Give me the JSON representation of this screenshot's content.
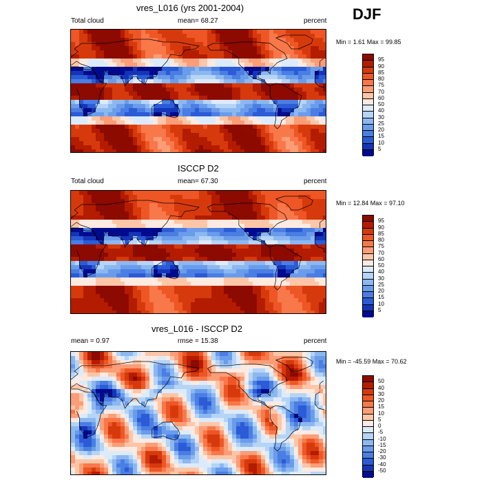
{
  "season_label": "DJF",
  "units_label": "percent",
  "panels": [
    {
      "title": "vres_L016 (yrs 2001-2004)",
      "left_label": "Total cloud",
      "mean_text": "mean=  68.27",
      "min_max": "Min =   1.61 Max =  99.85",
      "colorbar_labels": [
        "95",
        "90",
        "85",
        "80",
        "75",
        "70",
        "60",
        "50",
        "40",
        "30",
        "25",
        "20",
        "15",
        "10",
        "5"
      ],
      "palette": [
        "#8c0a00",
        "#b41c00",
        "#d63a0c",
        "#ee5626",
        "#f8784a",
        "#fb9d77",
        "#fdc6a8",
        "#fdeae0",
        "#dcebfb",
        "#b5d4f6",
        "#8cb8f0",
        "#6a9ceb",
        "#4b7ee3",
        "#2b5bd6",
        "#1535b8",
        "#000a8c"
      ],
      "map_style": "model"
    },
    {
      "title": "ISCCP D2",
      "left_label": "Total cloud",
      "mean_text": "mean=  67.30",
      "min_max": "Min =  12.84 Max =  97.10",
      "colorbar_labels": [
        "95",
        "90",
        "85",
        "80",
        "75",
        "70",
        "60",
        "50",
        "40",
        "30",
        "25",
        "20",
        "15",
        "10",
        "5"
      ],
      "palette": [
        "#8c0a00",
        "#b41c00",
        "#d63a0c",
        "#ee5626",
        "#f8784a",
        "#fb9d77",
        "#fdc6a8",
        "#fdeae0",
        "#dcebfb",
        "#b5d4f6",
        "#8cb8f0",
        "#6a9ceb",
        "#4b7ee3",
        "#2b5bd6",
        "#1535b8",
        "#000a8c"
      ],
      "map_style": "obs"
    },
    {
      "title": "vres_L016 - ISCCP D2",
      "left_label": "mean =   0.97",
      "mean_text": "rmse =  15.38",
      "min_max": "Min = -45.59 Max =  70.62",
      "colorbar_labels": [
        "50",
        "40",
        "30",
        "20",
        "15",
        "10",
        "5",
        "0",
        "-5",
        "-10",
        "-15",
        "-20",
        "-30",
        "-40",
        "-50"
      ],
      "palette": [
        "#8c0a00",
        "#b41c00",
        "#d63a0c",
        "#ee5626",
        "#f8784a",
        "#fb9d77",
        "#fdc6a8",
        "#fdeae0",
        "#dcebfb",
        "#b5d4f6",
        "#8cb8f0",
        "#6a9ceb",
        "#4b7ee3",
        "#2b5bd6",
        "#1535b8",
        "#000a8c"
      ],
      "map_style": "diff"
    }
  ]
}
